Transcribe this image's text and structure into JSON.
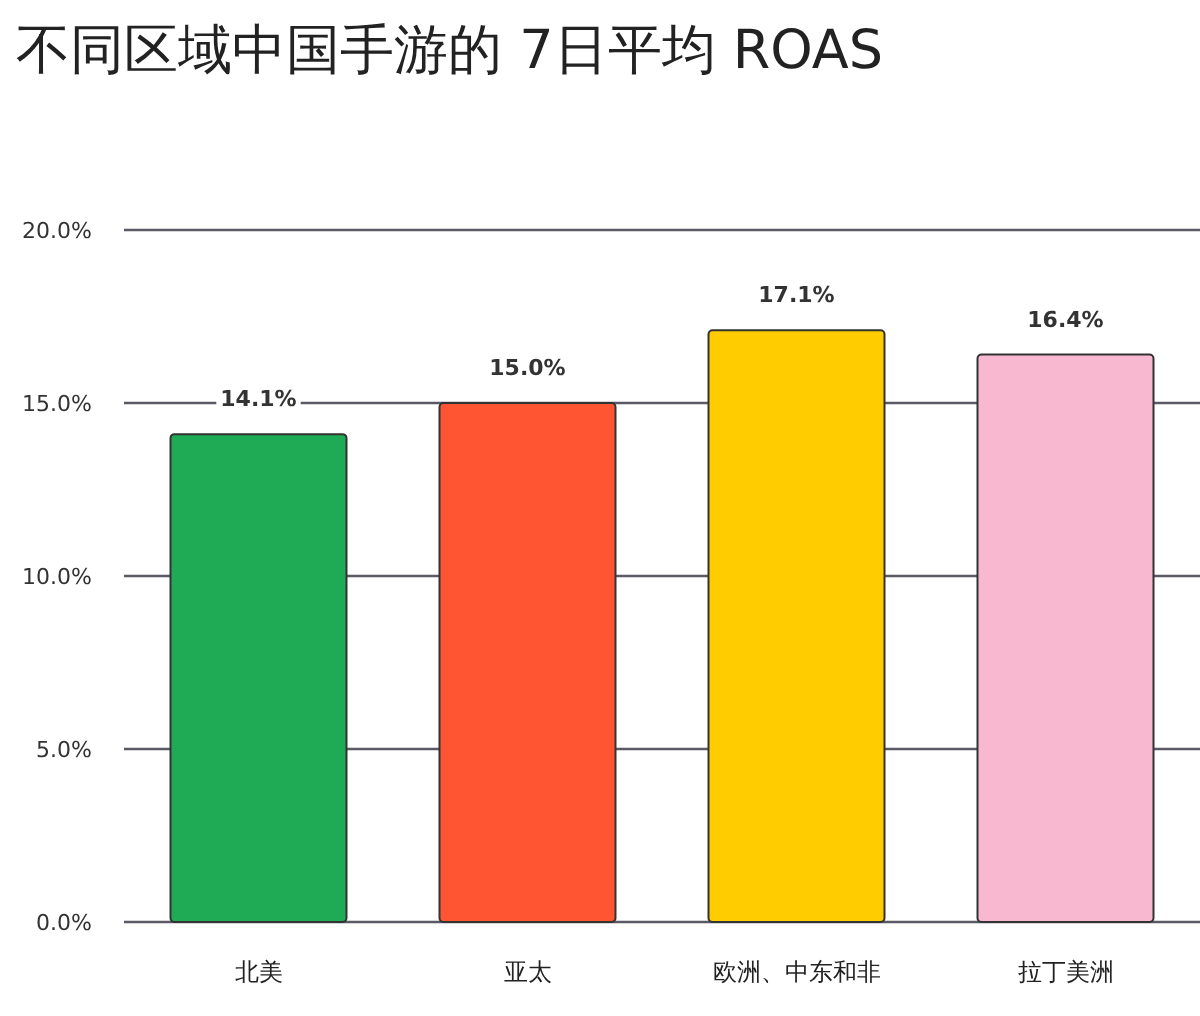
{
  "chart_data": {
    "type": "bar",
    "title": "不同区域中国手游的 7日平均 ROAS",
    "categories": [
      "北美",
      "亚太",
      "欧洲、中东和非",
      "拉丁美洲"
    ],
    "values": [
      14.1,
      15.0,
      17.1,
      16.4
    ],
    "colors": [
      "#1fab55",
      "#ff5533",
      "#ffcc00",
      "#f7b8d0"
    ],
    "value_labels": [
      "14.1%",
      "15.0%",
      "17.1%",
      "16.4%"
    ],
    "ylim": [
      0,
      20
    ],
    "yticks": [
      {
        "value": 0,
        "label": "0.0%"
      },
      {
        "value": 5,
        "label": "5.0%"
      },
      {
        "value": 10,
        "label": "10.0%"
      },
      {
        "value": 15,
        "label": "15.0%"
      },
      {
        "value": 20,
        "label": "20.0%"
      }
    ],
    "grid": "y"
  }
}
